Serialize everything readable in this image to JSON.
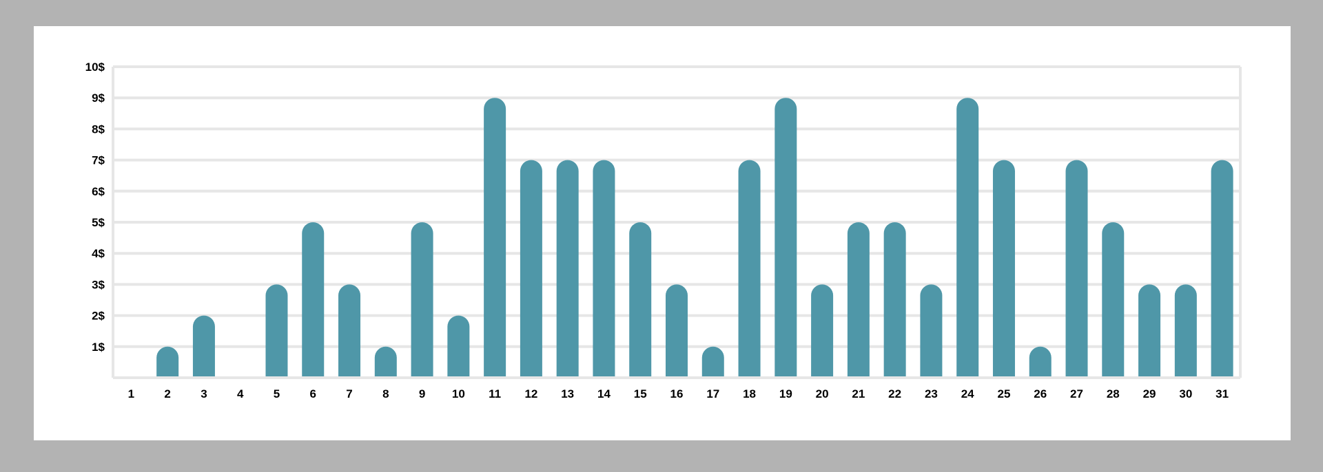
{
  "chart_data": {
    "type": "bar",
    "title": "",
    "xlabel": "",
    "ylabel": "",
    "categories": [
      "1",
      "2",
      "3",
      "4",
      "5",
      "6",
      "7",
      "8",
      "9",
      "10",
      "11",
      "12",
      "13",
      "14",
      "15",
      "16",
      "17",
      "18",
      "19",
      "20",
      "21",
      "22",
      "23",
      "24",
      "25",
      "26",
      "27",
      "28",
      "29",
      "30",
      "31"
    ],
    "values": [
      0,
      1,
      2,
      0,
      3,
      5,
      3,
      1,
      5,
      2,
      9,
      7,
      7,
      7,
      5,
      3,
      1,
      7,
      9,
      3,
      5,
      5,
      3,
      9,
      7,
      1,
      7,
      5,
      3,
      3,
      7
    ],
    "ylim": [
      0,
      10
    ],
    "y_ticks": [
      1,
      2,
      3,
      4,
      5,
      6,
      7,
      8,
      9,
      10
    ],
    "y_tick_labels": [
      "1$",
      "2$",
      "3$",
      "4$",
      "5$",
      "6$",
      "7$",
      "8$",
      "9$",
      "10$"
    ],
    "grid": true,
    "bar_style": "rounded-top",
    "legend": "none",
    "colors": {
      "bar": "#4f97a8",
      "grid": "#e6e6e6",
      "axis": "#e6e6e6",
      "page_background": "#b3b3b3",
      "chart_background": "#ffffff",
      "text": "#000000"
    }
  }
}
